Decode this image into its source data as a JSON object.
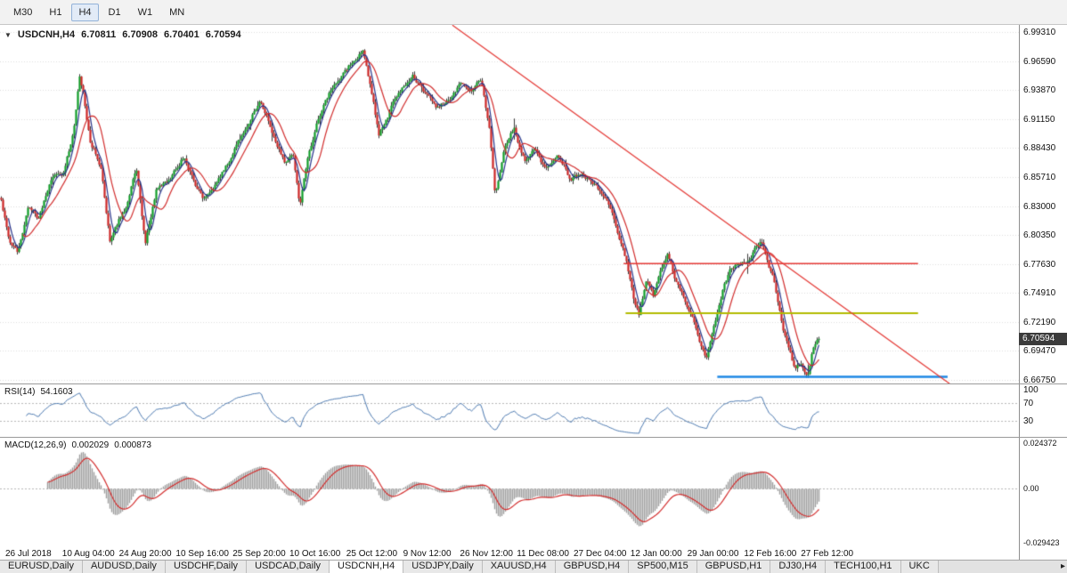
{
  "toolbar": {
    "timeframes": [
      "M30",
      "H1",
      "H4",
      "D1",
      "W1",
      "MN"
    ],
    "active": "H4"
  },
  "chart": {
    "symbol": "USDCNH,H4",
    "open": "6.70811",
    "high": "6.70908",
    "low": "6.70401",
    "close": "6.70594",
    "current_price": "6.70594",
    "price_axis": [
      "6.99310",
      "6.96590",
      "6.93870",
      "6.91150",
      "6.88430",
      "6.85710",
      "6.83000",
      "6.80350",
      "6.77630",
      "6.74910",
      "6.72190",
      "6.69470",
      "6.66750"
    ],
    "time_axis": [
      "26 Jul 2018",
      "10 Aug 04:00",
      "24 Aug 20:00",
      "10 Sep 16:00",
      "25 Sep 20:00",
      "10 Oct 16:00",
      "25 Oct 12:00",
      "9 Nov 12:00",
      "26 Nov 12:00",
      "11 Dec 08:00",
      "27 Dec 04:00",
      "12 Jan 00:00",
      "29 Jan 00:00",
      "12 Feb 16:00",
      "27 Feb 12:00"
    ]
  },
  "rsi": {
    "label": "RSI(14)",
    "value": "54.1603",
    "axis": [
      "100",
      "70",
      "30"
    ],
    "guides": [
      70,
      30
    ]
  },
  "macd": {
    "label": "MACD(12,26,9)",
    "value_main": "0.002029",
    "value_signal": "0.000873",
    "axis": [
      "0.024372",
      "0.00",
      "-0.029423"
    ]
  },
  "tabs": {
    "items": [
      "EURUSD,Daily",
      "AUDUSD,Daily",
      "USDCHF,Daily",
      "USDCAD,Daily",
      "USDCNH,H4",
      "USDJPY,Daily",
      "XAUUSD,H4",
      "GBPUSD,H4",
      "SP500,M15",
      "GBPUSD,H1",
      "DJ30,H4",
      "TECH100,H1",
      "UKC"
    ],
    "active": "USDCNH,H4",
    "scroll_arrow": "▸"
  },
  "chart_data": {
    "type": "candlestick",
    "symbol": "USDCNH",
    "timeframe": "H4",
    "y_range": [
      6.6675,
      6.9931
    ],
    "data_width_frac": 0.804,
    "candle_count": 460,
    "waypoints": [
      [
        0.0,
        6.838
      ],
      [
        0.011,
        6.796
      ],
      [
        0.02,
        6.786
      ],
      [
        0.033,
        6.828
      ],
      [
        0.046,
        6.818
      ],
      [
        0.06,
        6.852
      ],
      [
        0.076,
        6.862
      ],
      [
        0.089,
        6.9
      ],
      [
        0.096,
        6.952
      ],
      [
        0.101,
        6.934
      ],
      [
        0.109,
        6.89
      ],
      [
        0.122,
        6.868
      ],
      [
        0.133,
        6.796
      ],
      [
        0.152,
        6.83
      ],
      [
        0.165,
        6.866
      ],
      [
        0.176,
        6.794
      ],
      [
        0.19,
        6.846
      ],
      [
        0.207,
        6.856
      ],
      [
        0.223,
        6.878
      ],
      [
        0.237,
        6.852
      ],
      [
        0.248,
        6.838
      ],
      [
        0.263,
        6.85
      ],
      [
        0.28,
        6.872
      ],
      [
        0.296,
        6.898
      ],
      [
        0.317,
        6.93
      ],
      [
        0.332,
        6.9
      ],
      [
        0.346,
        6.872
      ],
      [
        0.357,
        6.882
      ],
      [
        0.365,
        6.83
      ],
      [
        0.374,
        6.874
      ],
      [
        0.387,
        6.912
      ],
      [
        0.404,
        6.94
      ],
      [
        0.422,
        6.956
      ],
      [
        0.437,
        6.972
      ],
      [
        0.443,
        6.976
      ],
      [
        0.452,
        6.94
      ],
      [
        0.462,
        6.896
      ],
      [
        0.476,
        6.92
      ],
      [
        0.491,
        6.942
      ],
      [
        0.503,
        6.954
      ],
      [
        0.52,
        6.93
      ],
      [
        0.535,
        6.92
      ],
      [
        0.549,
        6.932
      ],
      [
        0.562,
        6.946
      ],
      [
        0.576,
        6.938
      ],
      [
        0.587,
        6.948
      ],
      [
        0.597,
        6.902
      ],
      [
        0.604,
        6.842
      ],
      [
        0.615,
        6.886
      ],
      [
        0.627,
        6.904
      ],
      [
        0.641,
        6.87
      ],
      [
        0.654,
        6.882
      ],
      [
        0.667,
        6.864
      ],
      [
        0.68,
        6.876
      ],
      [
        0.696,
        6.856
      ],
      [
        0.711,
        6.862
      ],
      [
        0.726,
        6.85
      ],
      [
        0.741,
        6.84
      ],
      [
        0.754,
        6.806
      ],
      [
        0.765,
        6.776
      ],
      [
        0.774,
        6.74
      ],
      [
        0.78,
        6.726
      ],
      [
        0.789,
        6.76
      ],
      [
        0.798,
        6.748
      ],
      [
        0.807,
        6.772
      ],
      [
        0.815,
        6.79
      ],
      [
        0.824,
        6.764
      ],
      [
        0.835,
        6.744
      ],
      [
        0.846,
        6.728
      ],
      [
        0.854,
        6.7
      ],
      [
        0.862,
        6.686
      ],
      [
        0.871,
        6.716
      ],
      [
        0.882,
        6.752
      ],
      [
        0.892,
        6.772
      ],
      [
        0.904,
        6.776
      ],
      [
        0.916,
        6.782
      ],
      [
        0.929,
        6.8
      ],
      [
        0.938,
        6.778
      ],
      [
        0.947,
        6.754
      ],
      [
        0.955,
        6.718
      ],
      [
        0.964,
        6.694
      ],
      [
        0.971,
        6.676
      ],
      [
        0.979,
        6.682
      ],
      [
        0.986,
        6.67
      ],
      [
        0.992,
        6.696
      ],
      [
        1.0,
        6.706
      ]
    ],
    "objects": {
      "trendline": {
        "x1": 0.444,
        "p1": 6.9995,
        "x2": 0.932,
        "p2": 6.664,
        "color": "#e53935",
        "width": 1.3
      },
      "resistance_red": {
        "price": 6.7763,
        "x1": 0.612,
        "x2": 0.901,
        "color": "#e53935",
        "width": 1.5
      },
      "support_olive": {
        "price": 6.73,
        "x1": 0.614,
        "x2": 0.901,
        "color": "#b2bb00",
        "width": 2
      },
      "support_blue": {
        "price": 6.6705,
        "x1": 0.704,
        "x2": 0.93,
        "color": "#1e88e5",
        "width": 2.5
      }
    },
    "colors": {
      "bull": "#0f9d28",
      "bear": "#cc2525",
      "wick": "#3a3a3a",
      "ma_fast": "#27348b",
      "ma_slow": "#d22d2d",
      "grid": "#dedede",
      "rsi_line": "#4a78b0",
      "macd_hist": "#9e9e9e",
      "macd_signal": "#d32f2f",
      "badge_bg": "#3b3b3b"
    },
    "indicators": {
      "rsi": {
        "period": 14,
        "last": 54.1603
      },
      "macd": {
        "fast": 12,
        "slow": 26,
        "signal": 9,
        "last_main": 0.002029,
        "last_signal": 0.000873
      }
    }
  }
}
